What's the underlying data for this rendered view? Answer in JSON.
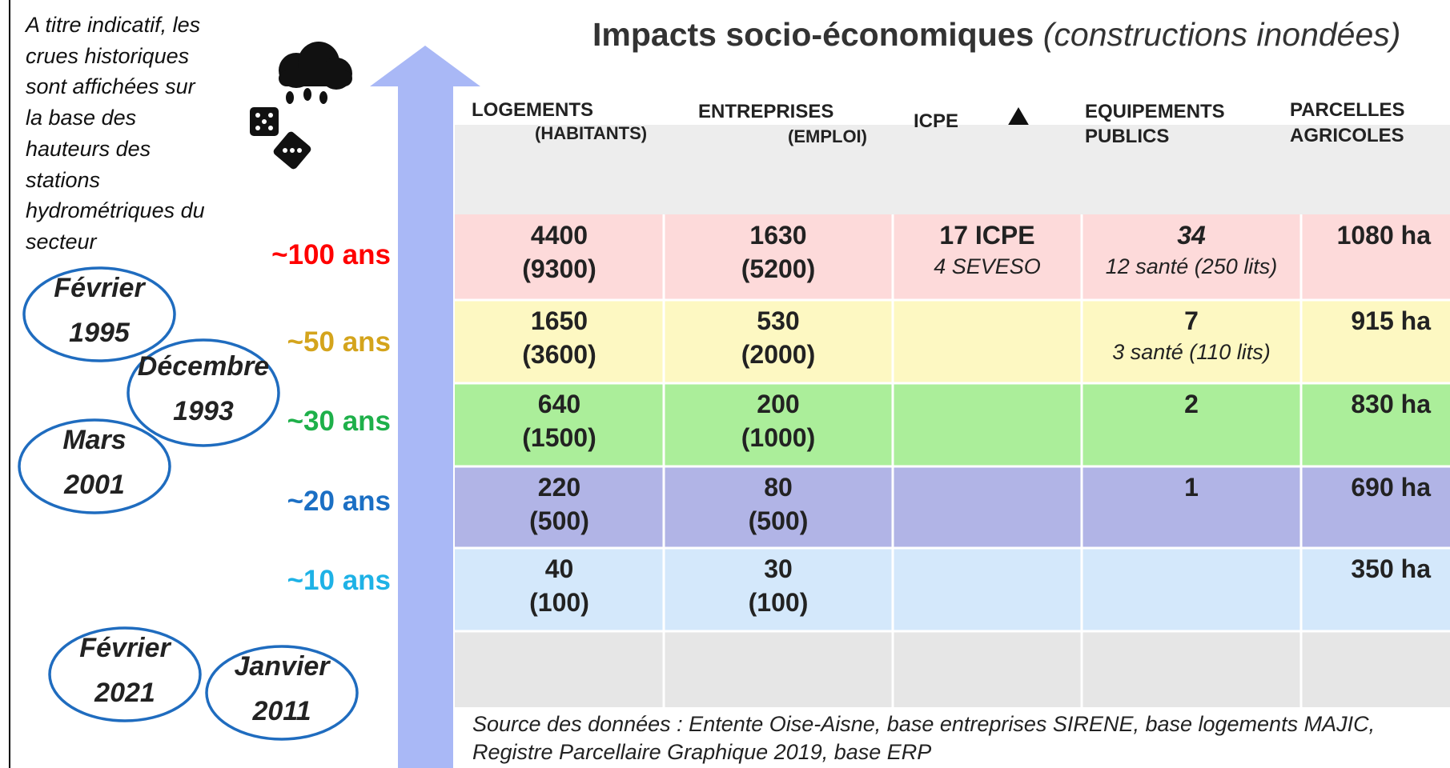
{
  "note": [
    "A titre indicatif, les",
    "crues historiques",
    "sont affichées sur",
    "la base des",
    "hauteurs des",
    "stations",
    "hydrométriques du",
    "secteur"
  ],
  "floods": [
    {
      "month": "Février",
      "year": "1995"
    },
    {
      "month": "Décembre",
      "year": "1993"
    },
    {
      "month": "Mars",
      "year": "2001"
    },
    {
      "month": "Février",
      "year": "2021"
    },
    {
      "month": "Janvier",
      "year": "2011"
    }
  ],
  "return_periods": [
    {
      "label": "~100 ans",
      "color": "#ff0000"
    },
    {
      "label": "~50 ans",
      "color": "#d4a41c"
    },
    {
      "label": "~30 ans",
      "color": "#1eb04a"
    },
    {
      "label": "~20 ans",
      "color": "#1b6fc4"
    },
    {
      "label": "~10 ans",
      "color": "#1eb2e6"
    }
  ],
  "title": "Impacts socio-économiques",
  "subtitle": "(constructions inondées)",
  "table": {
    "headers": [
      [
        "LOGEMENTS",
        "(HABITANTS)"
      ],
      [
        "ENTREPRISES",
        "(EMPLOI)"
      ],
      [
        "ICPE"
      ],
      [
        "EQUIPEMENTS",
        "PUBLICS"
      ],
      [
        "PARCELLES",
        "AGRICOLES"
      ]
    ],
    "rows": [
      {
        "color": "#fddada",
        "cells": [
          [
            "4400",
            "(9300)"
          ],
          [
            "1630",
            "(5200)"
          ],
          [
            "17 ICPE",
            "4 SEVESO"
          ],
          [
            "34",
            "12 santé (250 lits)"
          ],
          [
            "1080 ha"
          ]
        ]
      },
      {
        "color": "#fdf8c2",
        "cells": [
          [
            "1650",
            "(3600)"
          ],
          [
            "530",
            "(2000)"
          ],
          [],
          [
            "7",
            "3 santé (110 lits)"
          ],
          [
            "915 ha"
          ]
        ]
      },
      {
        "color": "#abee9a",
        "cells": [
          [
            "640",
            "(1500)"
          ],
          [
            "200",
            "(1000)"
          ],
          [],
          [
            "2"
          ],
          [
            "830 ha"
          ]
        ]
      },
      {
        "color": "#b1b4e6",
        "cells": [
          [
            "220",
            "(500)"
          ],
          [
            "80",
            "(500)"
          ],
          [],
          [
            "1"
          ],
          [
            "690 ha"
          ]
        ]
      },
      {
        "color": "#d4e8fb",
        "cells": [
          [
            "40",
            "(100)"
          ],
          [
            "30",
            "(100)"
          ],
          [],
          [],
          [
            "350 ha"
          ]
        ]
      },
      {
        "color": "#e6e6e6",
        "cells": [
          [],
          [],
          [],
          [],
          []
        ]
      }
    ]
  },
  "source": [
    "Source des données : Entente Oise-Aisne, base entreprises SIRENE, base logements MAJIC,",
    "Registre Parcellaire Graphique 2019, base ERP"
  ]
}
